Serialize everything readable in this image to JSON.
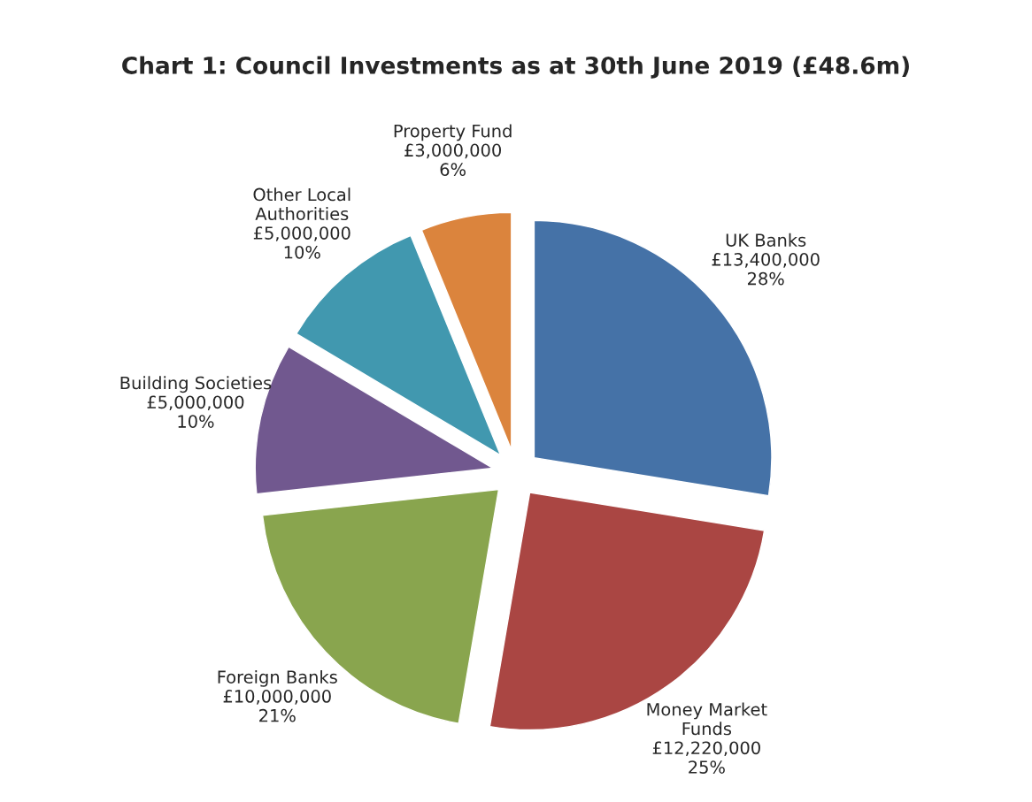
{
  "chart_data": {
    "type": "pie",
    "title": "Chart 1: Council Investments as at 30th June 2019 (£48.6m)",
    "categories": [
      "UK Banks",
      "Money Market\nFunds",
      "Foreign Banks",
      "Building Societies",
      "Other Local\nAuthorities",
      "Property Fund"
    ],
    "values": [
      13400000,
      12220000,
      10000000,
      5000000,
      5000000,
      3000000
    ],
    "value_labels": [
      "£13,400,000\n28%",
      "£12,220,000\n25%",
      "£10,000,000\n21%",
      "£5,000,000\n10%",
      "£5,000,000\n10%",
      "£3,000,000\n6%"
    ],
    "colors": [
      "#4572a7",
      "#aa4643",
      "#89a54e",
      "#71588f",
      "#4198af",
      "#db843d"
    ],
    "legend": false
  }
}
